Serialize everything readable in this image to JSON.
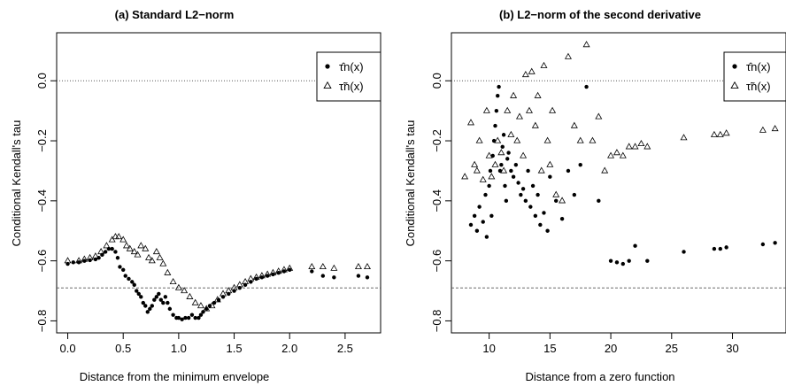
{
  "chart_data": [
    {
      "type": "scatter",
      "title": "(a) Standard L2−norm",
      "xlabel": "Distance from the minimum envelope",
      "ylabel": "Conditional Kendall's tau",
      "xlim": [
        -0.1,
        2.82
      ],
      "ylim": [
        -0.84,
        0.16
      ],
      "xticks": [
        "0.0",
        "0.5",
        "1.0",
        "1.5",
        "2.0",
        "2.5"
      ],
      "xtick_values": [
        0,
        0.5,
        1.0,
        1.5,
        2.0,
        2.5
      ],
      "yticks": [
        "0.0",
        "−0.2",
        "−0.4",
        "−0.6",
        "−0.8"
      ],
      "ytick_values": [
        0,
        -0.2,
        -0.4,
        -0.6,
        -0.8
      ],
      "hlines": [
        {
          "y": 0.0,
          "style": "dotted"
        },
        {
          "y": -0.69,
          "style": "dashed"
        }
      ],
      "legend": {
        "placement": "top-right",
        "entries": [
          "τ̂n(x)",
          "τ̃n(x)"
        ]
      },
      "series": [
        {
          "name": "τ̂n(x)",
          "marker": "dot",
          "points": [
            [
              0.0,
              -0.61
            ],
            [
              0.05,
              -0.605
            ],
            [
              0.1,
              -0.605
            ],
            [
              0.15,
              -0.6
            ],
            [
              0.2,
              -0.598
            ],
            [
              0.25,
              -0.595
            ],
            [
              0.28,
              -0.59
            ],
            [
              0.31,
              -0.58
            ],
            [
              0.34,
              -0.57
            ],
            [
              0.37,
              -0.56
            ],
            [
              0.4,
              -0.56
            ],
            [
              0.43,
              -0.57
            ],
            [
              0.45,
              -0.59
            ],
            [
              0.47,
              -0.62
            ],
            [
              0.5,
              -0.63
            ],
            [
              0.52,
              -0.65
            ],
            [
              0.55,
              -0.66
            ],
            [
              0.58,
              -0.67
            ],
            [
              0.6,
              -0.68
            ],
            [
              0.62,
              -0.7
            ],
            [
              0.64,
              -0.71
            ],
            [
              0.66,
              -0.72
            ],
            [
              0.68,
              -0.74
            ],
            [
              0.7,
              -0.75
            ],
            [
              0.72,
              -0.77
            ],
            [
              0.74,
              -0.76
            ],
            [
              0.76,
              -0.75
            ],
            [
              0.78,
              -0.73
            ],
            [
              0.8,
              -0.72
            ],
            [
              0.82,
              -0.71
            ],
            [
              0.84,
              -0.73
            ],
            [
              0.86,
              -0.74
            ],
            [
              0.88,
              -0.72
            ],
            [
              0.9,
              -0.74
            ],
            [
              0.92,
              -0.76
            ],
            [
              0.95,
              -0.78
            ],
            [
              0.98,
              -0.79
            ],
            [
              1.0,
              -0.79
            ],
            [
              1.03,
              -0.795
            ],
            [
              1.06,
              -0.79
            ],
            [
              1.09,
              -0.79
            ],
            [
              1.12,
              -0.78
            ],
            [
              1.15,
              -0.79
            ],
            [
              1.18,
              -0.79
            ],
            [
              1.2,
              -0.78
            ],
            [
              1.22,
              -0.77
            ],
            [
              1.25,
              -0.76
            ],
            [
              1.28,
              -0.75
            ],
            [
              1.32,
              -0.74
            ],
            [
              1.36,
              -0.73
            ],
            [
              1.4,
              -0.72
            ],
            [
              1.45,
              -0.71
            ],
            [
              1.5,
              -0.7
            ],
            [
              1.55,
              -0.69
            ],
            [
              1.6,
              -0.68
            ],
            [
              1.65,
              -0.67
            ],
            [
              1.7,
              -0.66
            ],
            [
              1.75,
              -0.655
            ],
            [
              1.8,
              -0.65
            ],
            [
              1.85,
              -0.645
            ],
            [
              1.9,
              -0.64
            ],
            [
              1.95,
              -0.635
            ],
            [
              2.0,
              -0.63
            ],
            [
              2.2,
              -0.635
            ],
            [
              2.3,
              -0.65
            ],
            [
              2.4,
              -0.655
            ],
            [
              2.62,
              -0.65
            ],
            [
              2.7,
              -0.655
            ]
          ]
        },
        {
          "name": "τ̃n(x)",
          "marker": "triangle",
          "points": [
            [
              0.0,
              -0.6
            ],
            [
              0.1,
              -0.6
            ],
            [
              0.15,
              -0.595
            ],
            [
              0.2,
              -0.59
            ],
            [
              0.25,
              -0.585
            ],
            [
              0.3,
              -0.57
            ],
            [
              0.35,
              -0.55
            ],
            [
              0.4,
              -0.53
            ],
            [
              0.43,
              -0.52
            ],
            [
              0.46,
              -0.52
            ],
            [
              0.5,
              -0.53
            ],
            [
              0.53,
              -0.55
            ],
            [
              0.56,
              -0.56
            ],
            [
              0.6,
              -0.57
            ],
            [
              0.63,
              -0.58
            ],
            [
              0.66,
              -0.55
            ],
            [
              0.7,
              -0.56
            ],
            [
              0.73,
              -0.59
            ],
            [
              0.76,
              -0.6
            ],
            [
              0.8,
              -0.57
            ],
            [
              0.83,
              -0.59
            ],
            [
              0.86,
              -0.61
            ],
            [
              0.9,
              -0.64
            ],
            [
              0.95,
              -0.67
            ],
            [
              1.0,
              -0.69
            ],
            [
              1.05,
              -0.7
            ],
            [
              1.1,
              -0.72
            ],
            [
              1.15,
              -0.74
            ],
            [
              1.2,
              -0.75
            ],
            [
              1.25,
              -0.76
            ],
            [
              1.3,
              -0.75
            ],
            [
              1.35,
              -0.73
            ],
            [
              1.4,
              -0.71
            ],
            [
              1.45,
              -0.7
            ],
            [
              1.5,
              -0.69
            ],
            [
              1.55,
              -0.68
            ],
            [
              1.6,
              -0.67
            ],
            [
              1.65,
              -0.66
            ],
            [
              1.7,
              -0.655
            ],
            [
              1.75,
              -0.65
            ],
            [
              1.8,
              -0.645
            ],
            [
              1.85,
              -0.64
            ],
            [
              1.9,
              -0.635
            ],
            [
              1.95,
              -0.63
            ],
            [
              2.0,
              -0.625
            ],
            [
              2.2,
              -0.62
            ],
            [
              2.3,
              -0.62
            ],
            [
              2.4,
              -0.625
            ],
            [
              2.62,
              -0.62
            ],
            [
              2.7,
              -0.62
            ]
          ]
        }
      ]
    },
    {
      "type": "scatter",
      "title": "(b) L2−norm of the second derivative",
      "xlabel": "Distance from a zero function",
      "ylabel": "Conditional Kendall's tau",
      "xlim": [
        6.9,
        34.4
      ],
      "ylim": [
        -0.84,
        0.16
      ],
      "xticks": [
        "10",
        "15",
        "20",
        "25",
        "30"
      ],
      "xtick_values": [
        10,
        15,
        20,
        25,
        30
      ],
      "yticks": [
        "0.0",
        "−0.2",
        "−0.4",
        "−0.6",
        "−0.8"
      ],
      "ytick_values": [
        0,
        -0.2,
        -0.4,
        -0.6,
        -0.8
      ],
      "hlines": [
        {
          "y": 0.0,
          "style": "dotted"
        },
        {
          "y": -0.69,
          "style": "dashed"
        }
      ],
      "legend": {
        "placement": "top-right",
        "entries": [
          "τ̂n(x)",
          "τ̃n(x)"
        ]
      },
      "series": [
        {
          "name": "τ̂n(x)",
          "marker": "dot",
          "points": [
            [
              8.5,
              -0.48
            ],
            [
              8.8,
              -0.45
            ],
            [
              9.0,
              -0.5
            ],
            [
              9.2,
              -0.42
            ],
            [
              9.5,
              -0.47
            ],
            [
              9.7,
              -0.38
            ],
            [
              9.8,
              -0.52
            ],
            [
              10.0,
              -0.35
            ],
            [
              10.1,
              -0.3
            ],
            [
              10.2,
              -0.45
            ],
            [
              10.3,
              -0.25
            ],
            [
              10.4,
              -0.2
            ],
            [
              10.5,
              -0.15
            ],
            [
              10.6,
              -0.1
            ],
            [
              10.7,
              -0.05
            ],
            [
              10.8,
              -0.02
            ],
            [
              10.9,
              -0.3
            ],
            [
              11.0,
              -0.28
            ],
            [
              11.1,
              -0.22
            ],
            [
              11.2,
              -0.18
            ],
            [
              11.3,
              -0.35
            ],
            [
              11.4,
              -0.4
            ],
            [
              11.5,
              -0.26
            ],
            [
              11.6,
              -0.24
            ],
            [
              11.8,
              -0.3
            ],
            [
              12.0,
              -0.32
            ],
            [
              12.2,
              -0.28
            ],
            [
              12.4,
              -0.34
            ],
            [
              12.6,
              -0.38
            ],
            [
              12.8,
              -0.36
            ],
            [
              13.0,
              -0.4
            ],
            [
              13.2,
              -0.3
            ],
            [
              13.4,
              -0.42
            ],
            [
              13.6,
              -0.35
            ],
            [
              13.8,
              -0.45
            ],
            [
              14.0,
              -0.38
            ],
            [
              14.2,
              -0.48
            ],
            [
              14.5,
              -0.44
            ],
            [
              14.8,
              -0.5
            ],
            [
              15.0,
              -0.32
            ],
            [
              15.5,
              -0.4
            ],
            [
              16.0,
              -0.46
            ],
            [
              16.5,
              -0.3
            ],
            [
              17.0,
              -0.38
            ],
            [
              17.5,
              -0.28
            ],
            [
              18.0,
              -0.02
            ],
            [
              19.0,
              -0.4
            ],
            [
              20.0,
              -0.6
            ],
            [
              20.5,
              -0.605
            ],
            [
              21.0,
              -0.61
            ],
            [
              21.5,
              -0.6
            ],
            [
              22.0,
              -0.55
            ],
            [
              23.0,
              -0.6
            ],
            [
              26.0,
              -0.57
            ],
            [
              28.5,
              -0.56
            ],
            [
              29.0,
              -0.56
            ],
            [
              29.5,
              -0.555
            ],
            [
              32.5,
              -0.545
            ],
            [
              33.5,
              -0.54
            ]
          ]
        },
        {
          "name": "τ̃n(x)",
          "marker": "triangle",
          "points": [
            [
              8.0,
              -0.32
            ],
            [
              8.5,
              -0.14
            ],
            [
              8.8,
              -0.28
            ],
            [
              9.0,
              -0.3
            ],
            [
              9.2,
              -0.2
            ],
            [
              9.5,
              -0.33
            ],
            [
              9.8,
              -0.1
            ],
            [
              10.0,
              -0.25
            ],
            [
              10.2,
              -0.32
            ],
            [
              10.5,
              -0.28
            ],
            [
              10.7,
              -0.2
            ],
            [
              11.0,
              -0.24
            ],
            [
              11.2,
              -0.3
            ],
            [
              11.5,
              -0.1
            ],
            [
              11.8,
              -0.18
            ],
            [
              12.0,
              -0.05
            ],
            [
              12.3,
              -0.2
            ],
            [
              12.5,
              -0.12
            ],
            [
              12.8,
              -0.25
            ],
            [
              13.0,
              0.02
            ],
            [
              13.3,
              -0.1
            ],
            [
              13.5,
              0.03
            ],
            [
              13.8,
              -0.15
            ],
            [
              14.0,
              -0.05
            ],
            [
              14.3,
              -0.3
            ],
            [
              14.5,
              0.05
            ],
            [
              14.8,
              -0.2
            ],
            [
              15.0,
              -0.28
            ],
            [
              15.2,
              -0.1
            ],
            [
              15.5,
              -0.38
            ],
            [
              16.0,
              -0.4
            ],
            [
              16.5,
              0.08
            ],
            [
              17.0,
              -0.15
            ],
            [
              17.5,
              -0.2
            ],
            [
              18.0,
              0.12
            ],
            [
              18.5,
              -0.2
            ],
            [
              19.0,
              -0.12
            ],
            [
              19.5,
              -0.3
            ],
            [
              20.0,
              -0.25
            ],
            [
              20.5,
              -0.24
            ],
            [
              21.0,
              -0.25
            ],
            [
              21.5,
              -0.22
            ],
            [
              22.0,
              -0.22
            ],
            [
              22.5,
              -0.21
            ],
            [
              23.0,
              -0.22
            ],
            [
              26.0,
              -0.19
            ],
            [
              28.5,
              -0.18
            ],
            [
              29.0,
              -0.18
            ],
            [
              29.5,
              -0.175
            ],
            [
              32.5,
              -0.165
            ],
            [
              33.5,
              -0.16
            ]
          ]
        }
      ]
    }
  ]
}
